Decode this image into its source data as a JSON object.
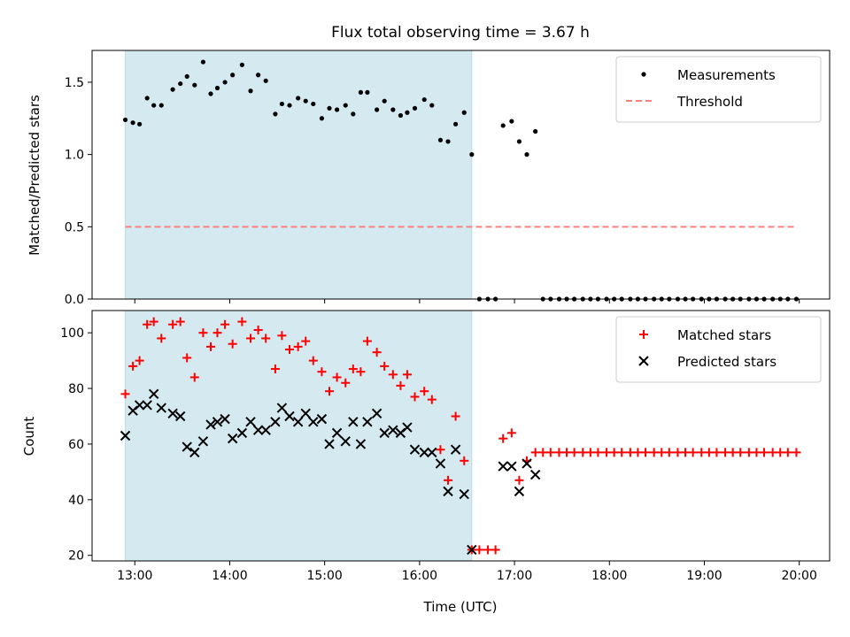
{
  "chart_data": [
    {
      "type": "scatter",
      "title": "Flux total observing time = 3.67 h",
      "xlabel": "",
      "ylabel": "Matched/Predicted stars",
      "x_unit": "hours UTC",
      "xlim": [
        12.55,
        20.32
      ],
      "ylim": [
        0,
        1.72
      ],
      "x_ticks": [
        13,
        14,
        15,
        16,
        17,
        18,
        19,
        20
      ],
      "x_tick_labels_visible": false,
      "y_ticks": [
        0.0,
        0.5,
        1.0,
        1.5
      ],
      "y_tick_labels": [
        "0.0",
        "0.5",
        "1.0",
        "1.5"
      ],
      "shaded_region": {
        "x": [
          12.9,
          16.55
        ],
        "color": "#d4eaf0"
      },
      "legend_position": "top-right",
      "series": [
        {
          "name": "Measurements",
          "marker": "dot",
          "color": "#000000",
          "x": [
            12.9,
            12.98,
            13.05,
            13.13,
            13.2,
            13.28,
            13.4,
            13.48,
            13.55,
            13.63,
            13.72,
            13.8,
            13.87,
            13.95,
            14.03,
            14.13,
            14.22,
            14.3,
            14.38,
            14.48,
            14.55,
            14.63,
            14.72,
            14.8,
            14.88,
            14.97,
            15.05,
            15.13,
            15.22,
            15.3,
            15.38,
            15.45,
            15.55,
            15.63,
            15.72,
            15.8,
            15.87,
            15.95,
            16.05,
            16.13,
            16.22,
            16.3,
            16.38,
            16.47,
            16.55,
            16.63,
            16.72,
            16.8,
            16.88,
            16.97,
            17.05,
            17.13,
            17.22,
            17.3,
            17.38,
            17.47,
            17.55,
            17.63,
            17.72,
            17.8,
            17.88,
            17.97,
            18.05,
            18.13,
            18.22,
            18.3,
            18.38,
            18.47,
            18.55,
            18.63,
            18.72,
            18.8,
            18.88,
            18.97,
            19.05,
            19.13,
            19.22,
            19.3,
            19.38,
            19.47,
            19.55,
            19.63,
            19.72,
            19.8,
            19.88,
            19.97
          ],
          "y": [
            1.24,
            1.22,
            1.21,
            1.39,
            1.34,
            1.34,
            1.45,
            1.49,
            1.54,
            1.48,
            1.64,
            1.42,
            1.46,
            1.5,
            1.55,
            1.62,
            1.44,
            1.55,
            1.51,
            1.28,
            1.35,
            1.34,
            1.39,
            1.37,
            1.35,
            1.25,
            1.32,
            1.31,
            1.34,
            1.28,
            1.43,
            1.43,
            1.31,
            1.37,
            1.31,
            1.27,
            1.29,
            1.32,
            1.38,
            1.34,
            1.1,
            1.09,
            1.21,
            1.29,
            1.0,
            0,
            0,
            0,
            1.2,
            1.23,
            1.09,
            1.0,
            1.16,
            0,
            0,
            0,
            0,
            0,
            0,
            0,
            0,
            0,
            0,
            0,
            0,
            0,
            0,
            0,
            0,
            0,
            0,
            0,
            0,
            0,
            0,
            0,
            0,
            0,
            0,
            0,
            0,
            0,
            0,
            0,
            0,
            0
          ]
        },
        {
          "name": "Threshold",
          "marker": "dashed-line",
          "color": "#ff7f7f",
          "x": [
            12.9,
            19.97
          ],
          "y": [
            0.5,
            0.5
          ]
        }
      ]
    },
    {
      "type": "scatter",
      "title": "",
      "xlabel": "Time (UTC)",
      "ylabel": "Count",
      "x_unit": "hours UTC",
      "xlim": [
        12.55,
        20.32
      ],
      "ylim": [
        18,
        108
      ],
      "x_ticks": [
        13,
        14,
        15,
        16,
        17,
        18,
        19,
        20
      ],
      "x_tick_labels": [
        "13:00",
        "14:00",
        "15:00",
        "16:00",
        "17:00",
        "18:00",
        "19:00",
        "20:00"
      ],
      "y_ticks": [
        20,
        40,
        60,
        80,
        100
      ],
      "y_tick_labels": [
        "20",
        "40",
        "60",
        "80",
        "100"
      ],
      "shaded_region": {
        "x": [
          12.9,
          16.55
        ],
        "color": "#d4eaf0"
      },
      "legend_position": "top-right",
      "series": [
        {
          "name": "Matched stars",
          "marker": "plus",
          "color": "#ff0000",
          "x": [
            12.9,
            12.98,
            13.05,
            13.13,
            13.2,
            13.28,
            13.4,
            13.48,
            13.55,
            13.63,
            13.72,
            13.8,
            13.87,
            13.95,
            14.03,
            14.13,
            14.22,
            14.3,
            14.38,
            14.48,
            14.55,
            14.63,
            14.72,
            14.8,
            14.88,
            14.97,
            15.05,
            15.13,
            15.22,
            15.3,
            15.38,
            15.45,
            15.55,
            15.63,
            15.72,
            15.8,
            15.87,
            15.95,
            16.05,
            16.13,
            16.22,
            16.3,
            16.38,
            16.47,
            16.55,
            16.63,
            16.72,
            16.8,
            16.88,
            16.97,
            17.05,
            17.13,
            17.22,
            17.3,
            17.38,
            17.47,
            17.55,
            17.63,
            17.72,
            17.8,
            17.88,
            17.97,
            18.05,
            18.13,
            18.22,
            18.3,
            18.38,
            18.47,
            18.55,
            18.63,
            18.72,
            18.8,
            18.88,
            18.97,
            19.05,
            19.13,
            19.22,
            19.3,
            19.38,
            19.47,
            19.55,
            19.63,
            19.72,
            19.8,
            19.88,
            19.97
          ],
          "y": [
            78,
            88,
            90,
            103,
            104,
            98,
            103,
            104,
            91,
            84,
            100,
            95,
            100,
            103,
            96,
            104,
            98,
            101,
            98,
            87,
            99,
            94,
            95,
            97,
            90,
            86,
            79,
            84,
            82,
            87,
            86,
            97,
            93,
            88,
            85,
            81,
            85,
            77,
            79,
            76,
            58,
            47,
            70,
            54,
            22,
            22,
            22,
            22,
            62,
            64,
            47,
            54,
            57,
            57,
            57,
            57,
            57,
            57,
            57,
            57,
            57,
            57,
            57,
            57,
            57,
            57,
            57,
            57,
            57,
            57,
            57,
            57,
            57,
            57,
            57,
            57,
            57,
            57,
            57,
            57,
            57,
            57,
            57,
            57,
            57,
            57
          ]
        },
        {
          "name": "Predicted stars",
          "marker": "x",
          "color": "#000000",
          "x": [
            12.9,
            12.98,
            13.05,
            13.13,
            13.2,
            13.28,
            13.4,
            13.48,
            13.55,
            13.63,
            13.72,
            13.8,
            13.87,
            13.95,
            14.03,
            14.13,
            14.22,
            14.3,
            14.38,
            14.48,
            14.55,
            14.63,
            14.72,
            14.8,
            14.88,
            14.97,
            15.05,
            15.13,
            15.22,
            15.3,
            15.38,
            15.45,
            15.55,
            15.63,
            15.72,
            15.8,
            15.87,
            15.95,
            16.05,
            16.13,
            16.22,
            16.3,
            16.38,
            16.47,
            16.55,
            16.88,
            16.97,
            17.05,
            17.13,
            17.22
          ],
          "y": [
            63,
            72,
            74,
            74,
            78,
            73,
            71,
            70,
            59,
            57,
            61,
            67,
            68,
            69,
            62,
            64,
            68,
            65,
            65,
            68,
            73,
            70,
            68,
            71,
            68,
            69,
            60,
            64,
            61,
            68,
            60,
            68,
            71,
            64,
            65,
            64,
            66,
            58,
            57,
            57,
            53,
            43,
            58,
            42,
            22,
            52,
            52,
            43,
            53,
            49
          ]
        }
      ]
    }
  ]
}
